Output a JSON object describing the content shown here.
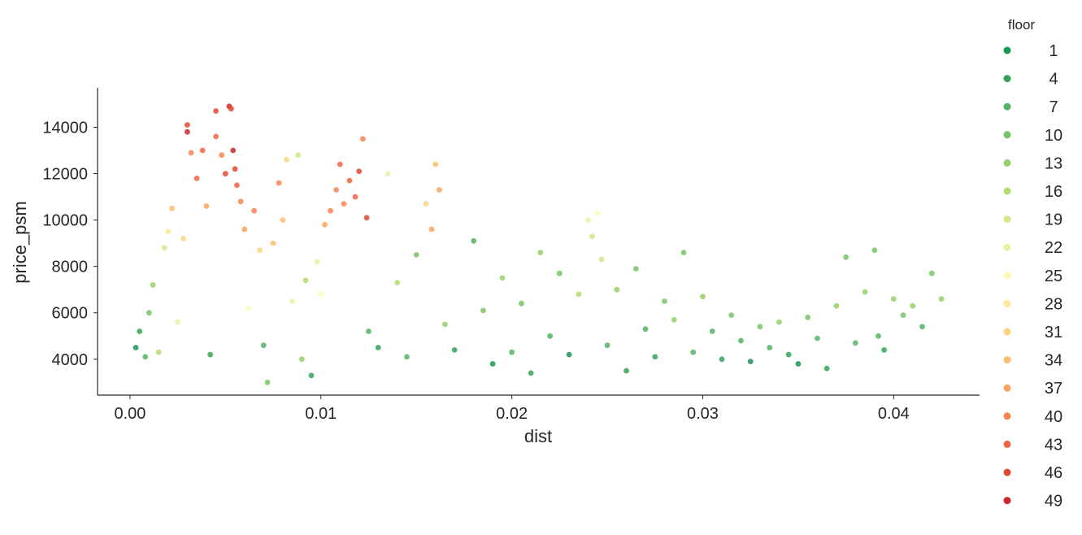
{
  "chart_data": {
    "type": "scatter",
    "title": "",
    "xlabel": "dist",
    "ylabel": "price_psm",
    "xlim": [
      -0.0017,
      0.0445
    ],
    "ylim": [
      2450,
      15700
    ],
    "xticks": [
      0.0,
      0.01,
      0.02,
      0.03,
      0.04
    ],
    "xtick_labels": [
      "0.00",
      "0.01",
      "0.02",
      "0.03",
      "0.04"
    ],
    "yticks": [
      4000,
      6000,
      8000,
      10000,
      12000,
      14000
    ],
    "ytick_labels": [
      "4000",
      "6000",
      "8000",
      "10000",
      "12000",
      "14000"
    ],
    "grid": false,
    "legend": {
      "title": "floor",
      "position": "right"
    },
    "series": [
      {
        "name": "1",
        "color": "#1a9850"
      },
      {
        "name": "4",
        "color": "#33a35a"
      },
      {
        "name": "7",
        "color": "#56b464"
      },
      {
        "name": "10",
        "color": "#78c466"
      },
      {
        "name": "13",
        "color": "#95d06a"
      },
      {
        "name": "16",
        "color": "#b3dc73"
      },
      {
        "name": "19",
        "color": "#cfe98b"
      },
      {
        "name": "22",
        "color": "#e6f4a2"
      },
      {
        "name": "25",
        "color": "#fbfab6"
      },
      {
        "name": "28",
        "color": "#fee89c"
      },
      {
        "name": "31",
        "color": "#fdd381"
      },
      {
        "name": "34",
        "color": "#fdbf6f"
      },
      {
        "name": "37",
        "color": "#fca35d"
      },
      {
        "name": "40",
        "color": "#f88450"
      },
      {
        "name": "43",
        "color": "#ef6645"
      },
      {
        "name": "46",
        "color": "#e04a35"
      },
      {
        "name": "49",
        "color": "#c92a2a"
      }
    ],
    "points": [
      [
        0.0003,
        4500,
        1
      ],
      [
        0.0005,
        5200,
        4
      ],
      [
        0.0008,
        4100,
        7
      ],
      [
        0.001,
        6000,
        10
      ],
      [
        0.0012,
        7200,
        13
      ],
      [
        0.0015,
        4300,
        16
      ],
      [
        0.0018,
        8800,
        19
      ],
      [
        0.002,
        9500,
        28
      ],
      [
        0.0022,
        10500,
        34
      ],
      [
        0.0025,
        5600,
        22
      ],
      [
        0.0028,
        9200,
        31
      ],
      [
        0.003,
        14100,
        46
      ],
      [
        0.003,
        13800,
        49
      ],
      [
        0.0032,
        12900,
        40
      ],
      [
        0.0035,
        11800,
        43
      ],
      [
        0.0038,
        13000,
        43
      ],
      [
        0.004,
        10600,
        37
      ],
      [
        0.0042,
        4200,
        4
      ],
      [
        0.0045,
        14700,
        46
      ],
      [
        0.0045,
        13600,
        43
      ],
      [
        0.0048,
        12800,
        40
      ],
      [
        0.005,
        12000,
        46
      ],
      [
        0.0052,
        14900,
        49
      ],
      [
        0.0053,
        14800,
        46
      ],
      [
        0.0054,
        13000,
        49
      ],
      [
        0.0055,
        12200,
        46
      ],
      [
        0.0056,
        11500,
        43
      ],
      [
        0.0058,
        10800,
        40
      ],
      [
        0.006,
        9600,
        37
      ],
      [
        0.0062,
        6200,
        25
      ],
      [
        0.0065,
        10400,
        40
      ],
      [
        0.0068,
        8700,
        31
      ],
      [
        0.007,
        4600,
        7
      ],
      [
        0.0072,
        3000,
        10
      ],
      [
        0.0075,
        9000,
        34
      ],
      [
        0.0078,
        11600,
        40
      ],
      [
        0.008,
        10000,
        34
      ],
      [
        0.0082,
        12600,
        31
      ],
      [
        0.0085,
        6500,
        22
      ],
      [
        0.0088,
        12800,
        19
      ],
      [
        0.009,
        4000,
        13
      ],
      [
        0.0092,
        7400,
        16
      ],
      [
        0.0095,
        3300,
        4
      ],
      [
        0.0098,
        8200,
        22
      ],
      [
        0.01,
        6800,
        25
      ],
      [
        0.0102,
        9800,
        37
      ],
      [
        0.0105,
        10400,
        40
      ],
      [
        0.0108,
        11300,
        40
      ],
      [
        0.011,
        12400,
        43
      ],
      [
        0.0112,
        10700,
        40
      ],
      [
        0.0115,
        11700,
        43
      ],
      [
        0.0118,
        11000,
        43
      ],
      [
        0.012,
        12100,
        46
      ],
      [
        0.0122,
        13500,
        40
      ],
      [
        0.0124,
        10100,
        46
      ],
      [
        0.0125,
        5200,
        7
      ],
      [
        0.013,
        4500,
        4
      ],
      [
        0.0135,
        12000,
        22
      ],
      [
        0.014,
        7300,
        16
      ],
      [
        0.0145,
        4100,
        7
      ],
      [
        0.015,
        8500,
        10
      ],
      [
        0.0155,
        10700,
        31
      ],
      [
        0.0158,
        9600,
        37
      ],
      [
        0.016,
        12400,
        34
      ],
      [
        0.0162,
        11300,
        37
      ],
      [
        0.0165,
        5500,
        13
      ],
      [
        0.017,
        4400,
        4
      ],
      [
        0.018,
        9100,
        7
      ],
      [
        0.0185,
        6100,
        10
      ],
      [
        0.019,
        3800,
        1
      ],
      [
        0.0195,
        7500,
        13
      ],
      [
        0.02,
        4300,
        7
      ],
      [
        0.0205,
        6400,
        10
      ],
      [
        0.021,
        3400,
        4
      ],
      [
        0.0215,
        8600,
        13
      ],
      [
        0.022,
        5000,
        7
      ],
      [
        0.0225,
        7700,
        10
      ],
      [
        0.023,
        4200,
        1
      ],
      [
        0.0235,
        6800,
        16
      ],
      [
        0.024,
        10000,
        22
      ],
      [
        0.0242,
        9300,
        19
      ],
      [
        0.0245,
        10300,
        25
      ],
      [
        0.0247,
        8300,
        19
      ],
      [
        0.025,
        4600,
        7
      ],
      [
        0.0255,
        7000,
        13
      ],
      [
        0.026,
        3500,
        4
      ],
      [
        0.0265,
        7900,
        10
      ],
      [
        0.027,
        5300,
        7
      ],
      [
        0.0275,
        4100,
        4
      ],
      [
        0.028,
        6500,
        10
      ],
      [
        0.0285,
        5700,
        13
      ],
      [
        0.029,
        8600,
        10
      ],
      [
        0.0295,
        4300,
        7
      ],
      [
        0.03,
        6700,
        13
      ],
      [
        0.0305,
        5200,
        7
      ],
      [
        0.031,
        4000,
        4
      ],
      [
        0.0315,
        5900,
        10
      ],
      [
        0.032,
        4800,
        7
      ],
      [
        0.0325,
        3900,
        1
      ],
      [
        0.033,
        5400,
        10
      ],
      [
        0.0335,
        4500,
        7
      ],
      [
        0.034,
        5600,
        13
      ],
      [
        0.0345,
        4200,
        4
      ],
      [
        0.035,
        3800,
        1
      ],
      [
        0.0355,
        5800,
        10
      ],
      [
        0.036,
        4900,
        7
      ],
      [
        0.0365,
        3600,
        4
      ],
      [
        0.037,
        6300,
        13
      ],
      [
        0.0375,
        8400,
        10
      ],
      [
        0.038,
        4700,
        7
      ],
      [
        0.0385,
        6900,
        13
      ],
      [
        0.039,
        8700,
        10
      ],
      [
        0.0392,
        5000,
        7
      ],
      [
        0.0395,
        4400,
        4
      ],
      [
        0.04,
        6600,
        13
      ],
      [
        0.0405,
        5900,
        10
      ],
      [
        0.041,
        6300,
        13
      ],
      [
        0.0415,
        5400,
        7
      ],
      [
        0.042,
        7700,
        10
      ],
      [
        0.0425,
        6600,
        13
      ]
    ]
  }
}
